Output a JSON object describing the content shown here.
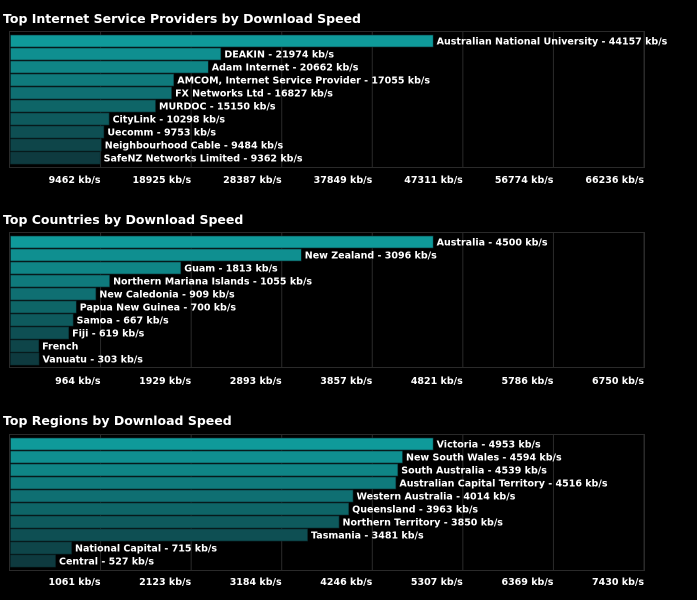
{
  "chart_data": [
    {
      "type": "bar",
      "orientation": "horizontal",
      "title": "Top Internet Service Providers by Download Speed",
      "unit": "kb/s",
      "xlim": [
        0,
        66236
      ],
      "ticks": [
        9462,
        18925,
        28387,
        37849,
        47311,
        56774,
        66236
      ],
      "tick_labels": [
        "9462 kb/s",
        "18925 kb/s",
        "28387 kb/s",
        "37849 kb/s",
        "47311 kb/s",
        "56774 kb/s",
        "66236 kb/s"
      ],
      "grid": true,
      "categories": [
        "Australian National University",
        "DEAKIN",
        "Adam Internet",
        "AMCOM, Internet Service Provider",
        "FX Networks Ltd",
        "MURDOC",
        "CityLink",
        "Uecomm",
        "Neighbourhood Cable",
        "SafeNZ Networks Limited"
      ],
      "values": [
        44157,
        21974,
        20662,
        17055,
        16827,
        15150,
        10298,
        9753,
        9484,
        9362
      ],
      "labels": [
        "Australian National University - 44157 kb/s",
        "DEAKIN - 21974 kb/s",
        "Adam Internet - 20662 kb/s",
        "AMCOM, Internet Service Provider - 17055 kb/s",
        "FX Networks Ltd - 16827 kb/s",
        "MURDOC - 15150 kb/s",
        "CityLink - 10298 kb/s",
        "Uecomm - 9753 kb/s",
        "Neighbourhood Cable - 9484 kb/s",
        "SafeNZ Networks Limited - 9362 kb/s"
      ]
    },
    {
      "type": "bar",
      "orientation": "horizontal",
      "title": "Top Countries by Download Speed",
      "unit": "kb/s",
      "xlim": [
        0,
        6750
      ],
      "ticks": [
        964,
        1929,
        2893,
        3857,
        4821,
        5786,
        6750
      ],
      "tick_labels": [
        "964 kb/s",
        "1929 kb/s",
        "2893 kb/s",
        "3857 kb/s",
        "4821 kb/s",
        "5786 kb/s",
        "6750 kb/s"
      ],
      "grid": true,
      "categories": [
        "Australia",
        "New Zealand",
        "Guam",
        "Northern Mariana Islands",
        "New Caledonia",
        "Papua New Guinea",
        "Samoa",
        "Fiji",
        "French",
        "Vanuatu"
      ],
      "values": [
        4500,
        3096,
        1813,
        1055,
        909,
        700,
        667,
        619,
        300,
        303
      ],
      "labels": [
        "Australia - 4500 kb/s",
        "New Zealand - 3096 kb/s",
        "Guam - 1813 kb/s",
        "Northern Mariana Islands - 1055 kb/s",
        "New Caledonia - 909 kb/s",
        "Papua New Guinea - 700 kb/s",
        "Samoa - 667 kb/s",
        "Fiji - 619 kb/s",
        "French",
        "Vanuatu - 303 kb/s"
      ]
    },
    {
      "type": "bar",
      "orientation": "horizontal",
      "title": "Top Regions by Download Speed",
      "unit": "kb/s",
      "xlim": [
        0,
        7430
      ],
      "ticks": [
        1061,
        2123,
        3184,
        4246,
        5307,
        6369,
        7430
      ],
      "tick_labels": [
        "1061 kb/s",
        "2123 kb/s",
        "3184 kb/s",
        "4246 kb/s",
        "5307 kb/s",
        "6369 kb/s",
        "7430 kb/s"
      ],
      "grid": true,
      "categories": [
        "Victoria",
        "New South Wales",
        "South Australia",
        "Australian Capital Territory",
        "Western Australia",
        "Queensland",
        "Northern Territory",
        "Tasmania",
        "National Capital",
        "Central"
      ],
      "values": [
        4953,
        4594,
        4539,
        4516,
        4014,
        3963,
        3850,
        3481,
        715,
        527
      ],
      "labels": [
        "Victoria - 4953 kb/s",
        "New South Wales - 4594 kb/s",
        "South Australia - 4539 kb/s",
        "Australian Capital Territory - 4516 kb/s",
        "Western Australia - 4014 kb/s",
        "Queensland - 3963 kb/s",
        "Northern Territory - 3850 kb/s",
        "Tasmania - 3481 kb/s",
        "National Capital - 715 kb/s",
        "Central - 527 kb/s"
      ]
    }
  ],
  "colors": {
    "bar_top": "#0f9a9a",
    "bar_bottom": "#0e3a3f",
    "background": "#000000",
    "grid": "#2a2a2a",
    "text": "#ffffff"
  }
}
